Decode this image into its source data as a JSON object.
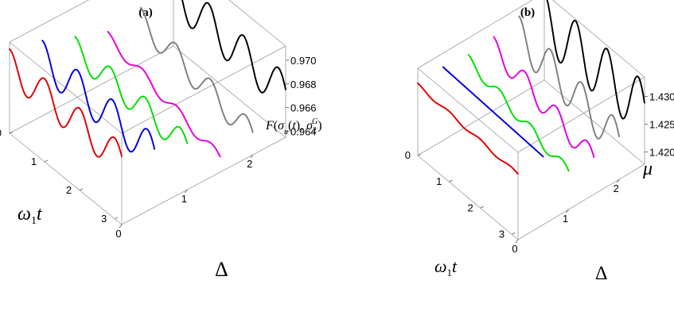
{
  "chart_data": [
    {
      "type": "line",
      "panel_label": "(a)",
      "projection": "3d",
      "zlabel_text": "F(σ_u(t), σ_2^G)",
      "zlabel": {
        "f": "F",
        "sigma": "σ",
        "sub_u": "u",
        "t": "t",
        "sigma2": "σ",
        "sub_2": "2",
        "sup_G": "G"
      },
      "xlabel": {
        "omega": "ω",
        "sub": "1",
        "t": "t"
      },
      "ylabel": "Δ",
      "xticks": [
        "0",
        "1",
        "2",
        "3"
      ],
      "yticks": [
        "0",
        "1",
        "2"
      ],
      "zticks": [
        "0.964",
        "0.966",
        "0.968",
        "0.970"
      ],
      "xlim": [
        0,
        3.2
      ],
      "ylim": [
        0,
        2.5
      ],
      "zlim": [
        0.9635,
        0.9712
      ],
      "grid": false,
      "series": [
        {
          "color": "#e00000",
          "delta": 0.0,
          "z0": 0.9692,
          "amp": 0.0014,
          "omega": 6.3,
          "drift": -0.0003
        },
        {
          "color": "#0000e0",
          "delta": 0.5,
          "z0": 0.9683,
          "amp": 0.00155,
          "omega": 6.3,
          "drift": -0.0003
        },
        {
          "color": "#00e000",
          "delta": 1.0,
          "z0": 0.9676,
          "amp": 0.0011,
          "omega": 6.3,
          "drift": -0.0005
        },
        {
          "color": "#e000e0",
          "delta": 1.5,
          "z0": 0.9672,
          "amp": 0.00045,
          "omega": 6.3,
          "drift": -0.0025
        },
        {
          "color": "#808080",
          "delta": 2.0,
          "z0": 0.9671,
          "amp": 0.0011,
          "omega": 6.3,
          "drift": -0.002
        },
        {
          "color": "#000000",
          "delta": 2.5,
          "z0": 0.9681,
          "amp": 0.0017,
          "omega": 6.3,
          "drift": -0.001
        }
      ]
    },
    {
      "type": "line",
      "panel_label": "(b)",
      "projection": "3d",
      "zlabel": "μ",
      "xlabel": {
        "omega": "ω",
        "sub": "1",
        "t": "t"
      },
      "ylabel": "Δ",
      "xticks": [
        "0",
        "1",
        "2",
        "3"
      ],
      "yticks": [
        "0",
        "1",
        "2"
      ],
      "zticks": [
        "1.420",
        "1.425",
        "1.430"
      ],
      "xlim": [
        0,
        3.2
      ],
      "ylim": [
        0,
        2.5
      ],
      "zlim": [
        1.4178,
        1.4335
      ],
      "grid": false,
      "series": [
        {
          "color": "#e00000",
          "delta": 0.0,
          "z0": 1.4305,
          "amp": 0.0003,
          "omega": 6.3,
          "drift": -0.001
        },
        {
          "color": "#0000e0",
          "delta": 0.5,
          "z0": 1.431,
          "amp": 0.0,
          "omega": 6.3,
          "drift": -0.001
        },
        {
          "color": "#00e000",
          "delta": 1.0,
          "z0": 1.4295,
          "amp": 0.001,
          "omega": 6.3,
          "drift": -0.005
        },
        {
          "color": "#e000e0",
          "delta": 1.5,
          "z0": 1.429,
          "amp": 0.002,
          "omega": 6.3,
          "drift": -0.005
        },
        {
          "color": "#808080",
          "delta": 2.0,
          "z0": 1.4285,
          "amp": 0.0035,
          "omega": 6.3,
          "drift": -0.004
        },
        {
          "color": "#000000",
          "delta": 2.5,
          "z0": 1.4285,
          "amp": 0.005,
          "omega": 6.3,
          "drift": -0.001
        }
      ]
    }
  ]
}
